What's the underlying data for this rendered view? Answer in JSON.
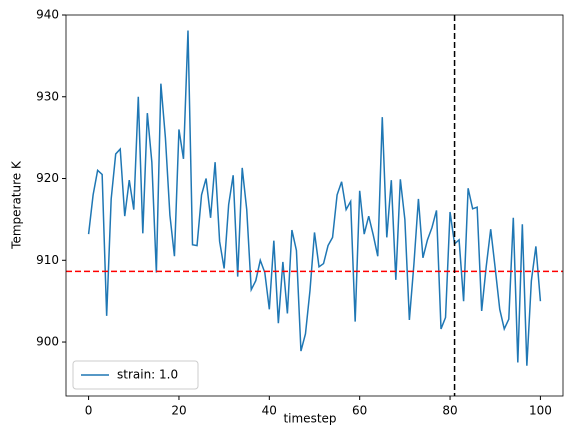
{
  "chart_data": {
    "type": "line",
    "xlabel": "timestep",
    "ylabel": "Temperature K",
    "x": [
      0,
      1,
      2,
      3,
      4,
      5,
      6,
      7,
      8,
      9,
      10,
      11,
      12,
      13,
      14,
      15,
      16,
      17,
      18,
      19,
      20,
      21,
      22,
      23,
      24,
      25,
      26,
      27,
      28,
      29,
      30,
      31,
      32,
      33,
      34,
      35,
      36,
      37,
      38,
      39,
      40,
      41,
      42,
      43,
      44,
      45,
      46,
      47,
      48,
      49,
      50,
      51,
      52,
      53,
      54,
      55,
      56,
      57,
      58,
      59,
      60,
      61,
      62,
      63,
      64,
      65,
      66,
      67,
      68,
      69,
      70,
      71,
      72,
      73,
      74,
      75,
      76,
      77,
      78,
      79,
      80,
      81,
      82,
      83,
      84,
      85,
      86,
      87,
      88,
      89,
      90,
      91,
      92,
      93,
      94,
      95,
      96,
      97,
      98,
      99,
      100
    ],
    "series": [
      {
        "name": "strain: 1.0",
        "color": "#1f77b4",
        "values": [
          913.2,
          918,
          921,
          920.5,
          903.2,
          917.5,
          923,
          923.6,
          915.4,
          919.8,
          916.2,
          930,
          913.3,
          928,
          922,
          908.5,
          931.6,
          925,
          915.5,
          910.5,
          926,
          922.4,
          938.1,
          911.9,
          911.8,
          918,
          920,
          915.2,
          922,
          912.3,
          909,
          916.8,
          920.4,
          908,
          921.3,
          916.2,
          906.4,
          907.5,
          910,
          908.5,
          904,
          912.4,
          902.3,
          909.8,
          903.5,
          913.7,
          911.2,
          898.9,
          901,
          906.3,
          913.4,
          909.2,
          909.6,
          911.8,
          912.8,
          918,
          919.6,
          916.2,
          917.2,
          902.5,
          918.5,
          913.2,
          915.4,
          913.1,
          910.5,
          927.5,
          912.8,
          919.8,
          907.6,
          919.9,
          915,
          902.7,
          909.5,
          917.5,
          910.3,
          912.5,
          914,
          916.1,
          901.6,
          903,
          915.9,
          912,
          912.5,
          905,
          918.8,
          916.3,
          916.5,
          903.8,
          909.2,
          913.8,
          909,
          904,
          901.6,
          902.8,
          915.2,
          897.5,
          914.4,
          897.1,
          907.5,
          911.7,
          905
        ]
      }
    ],
    "reference_lines": [
      {
        "axis": "y",
        "value": 908.65,
        "color": "#ff0000"
      },
      {
        "axis": "x",
        "value": 81,
        "color": "#000000"
      }
    ],
    "xlim": [
      -5,
      105
    ],
    "xticks": [
      0,
      20,
      40,
      60,
      80,
      100
    ],
    "ylim": [
      893.4,
      940
    ],
    "yticks": [
      900,
      910,
      920,
      930,
      940
    ],
    "legend": "lower left",
    "grid": false
  }
}
